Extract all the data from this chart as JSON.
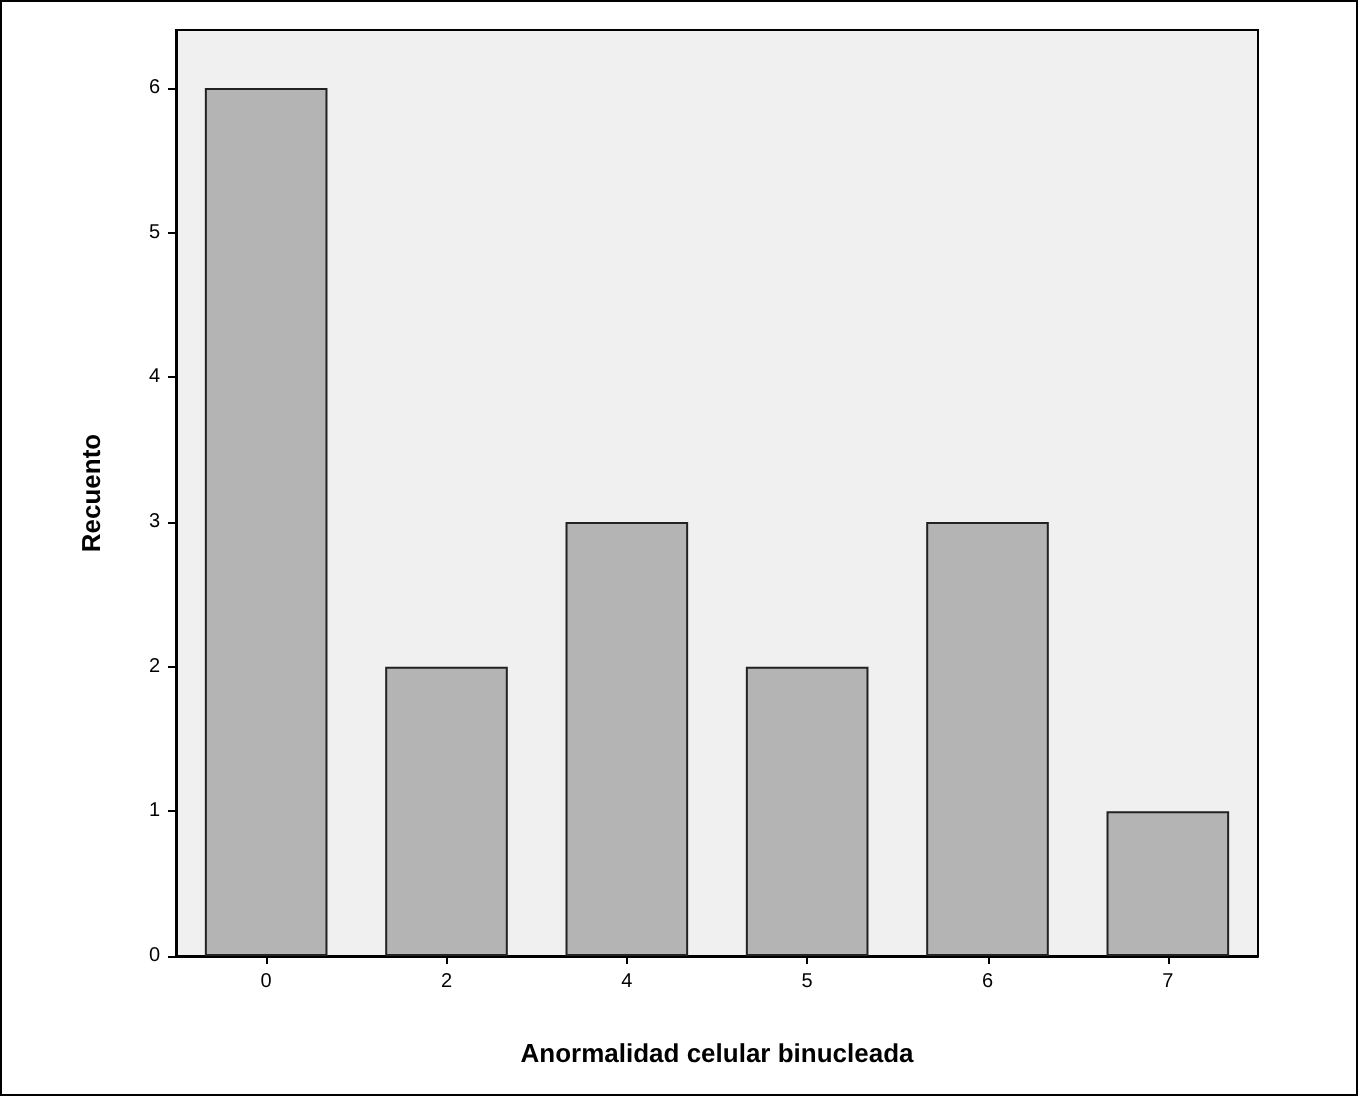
{
  "chart_data": {
    "type": "bar",
    "xlabel": "Anormalidad celular binucleada",
    "ylabel": "Recuento",
    "categories": [
      "0",
      "2",
      "4",
      "5",
      "6",
      "7"
    ],
    "values": [
      6,
      2,
      3,
      2,
      3,
      1
    ],
    "color": "#b4b4b4",
    "ylim": [
      0,
      6.4
    ],
    "yticks": [
      0,
      1,
      2,
      3,
      4,
      5,
      6
    ],
    "grid": false
  }
}
